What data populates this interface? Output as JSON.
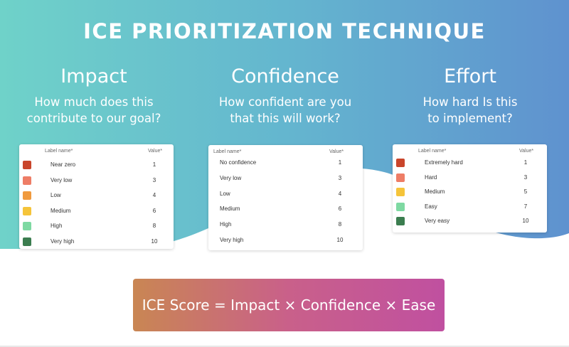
{
  "title": "ICE PRIORITIZATION TECHNIQUE",
  "columns": [
    {
      "heading": "Impact",
      "question": "How much does this\ncontribute to our goal?",
      "card": {
        "label_header": "Label name*",
        "value_header": "Value*",
        "rows": [
          {
            "label": "Near zero",
            "value": "1",
            "color": "#c9452b"
          },
          {
            "label": "Very low",
            "value": "3",
            "color": "#ee7d66"
          },
          {
            "label": "Low",
            "value": "4",
            "color": "#f09a3e"
          },
          {
            "label": "Medium",
            "value": "6",
            "color": "#f5c43a"
          },
          {
            "label": "High",
            "value": "8",
            "color": "#7ed9a2"
          },
          {
            "label": "Very high",
            "value": "10",
            "color": "#3b7d4f"
          }
        ]
      }
    },
    {
      "heading": "Confidence",
      "question": "How confident are you\nthat this will work?",
      "card": {
        "label_header": "Label name*",
        "value_header": "Value*",
        "rows": [
          {
            "label": "No confidence",
            "value": "1"
          },
          {
            "label": "Very low",
            "value": "3"
          },
          {
            "label": "Low",
            "value": "4"
          },
          {
            "label": "Medium",
            "value": "6"
          },
          {
            "label": "High",
            "value": "8"
          },
          {
            "label": "Very high",
            "value": "10"
          }
        ]
      }
    },
    {
      "heading": "Effort",
      "question": "How hard Is this\nto implement?",
      "card": {
        "label_header": "Label name*",
        "value_header": "Value*",
        "rows": [
          {
            "label": "Extremely hard",
            "value": "1",
            "color": "#c9452b"
          },
          {
            "label": "Hard",
            "value": "3",
            "color": "#ee7d66"
          },
          {
            "label": "Medium",
            "value": "5",
            "color": "#f5c43a"
          },
          {
            "label": "Easy",
            "value": "7",
            "color": "#7ed9a2"
          },
          {
            "label": "Very easy",
            "value": "10",
            "color": "#3b7d4f"
          }
        ]
      }
    }
  ],
  "formula": "ICE Score = Impact × Confidence × Ease"
}
